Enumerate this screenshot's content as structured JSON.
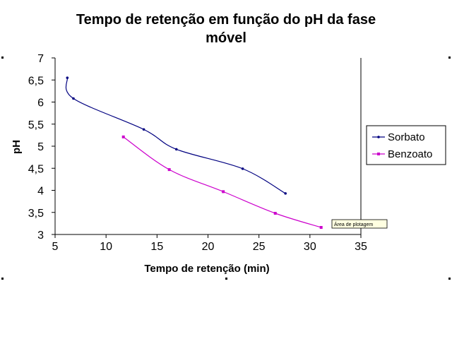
{
  "chart_data": {
    "type": "line",
    "title_line1": "Tempo de retenção em função do pH da fase",
    "title_line2": "móvel",
    "xlabel": "Tempo de retenção (min)",
    "ylabel": "pH",
    "xlim": [
      5,
      35
    ],
    "ylim": [
      3,
      7
    ],
    "x_ticks": [
      "5",
      "10",
      "15",
      "20",
      "25",
      "30",
      "35"
    ],
    "y_ticks": [
      "3",
      "3,5",
      "4",
      "4,5",
      "5",
      "5,5",
      "6",
      "6,5",
      "7"
    ],
    "grid": false,
    "legend_position": "right",
    "series": [
      {
        "name": "Sorbato",
        "color": "#000080",
        "marker": "dot",
        "points": [
          [
            6.2,
            6.55
          ],
          [
            6.8,
            6.08
          ],
          [
            13.7,
            5.38
          ],
          [
            16.9,
            4.93
          ],
          [
            23.4,
            4.49
          ],
          [
            27.6,
            3.93
          ]
        ]
      },
      {
        "name": "Benzoato",
        "color": "#cc00cc",
        "marker": "square",
        "points": [
          [
            11.7,
            5.21
          ],
          [
            16.2,
            4.47
          ],
          [
            21.5,
            3.97
          ],
          [
            26.6,
            3.48
          ],
          [
            31.1,
            3.16
          ]
        ]
      }
    ],
    "tooltip": "Área de plotagem"
  }
}
